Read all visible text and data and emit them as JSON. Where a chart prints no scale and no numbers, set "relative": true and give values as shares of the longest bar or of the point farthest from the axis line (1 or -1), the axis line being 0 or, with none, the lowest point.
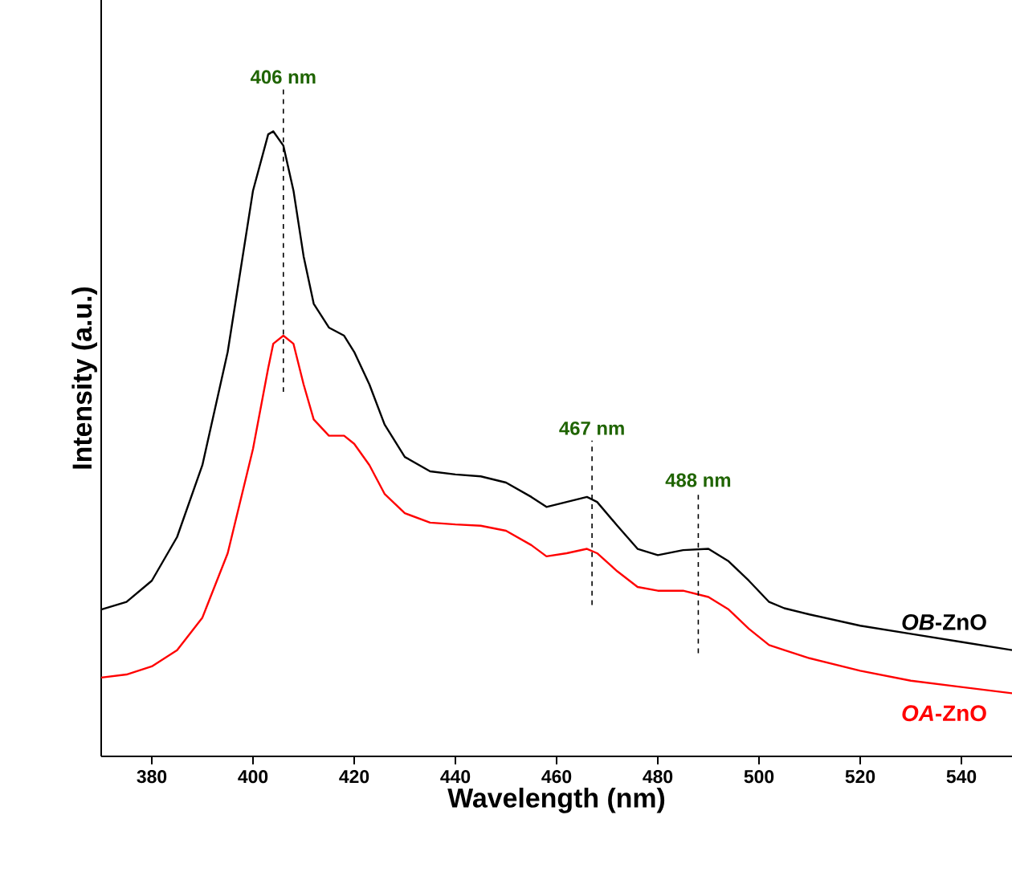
{
  "chart_data": {
    "type": "line",
    "relative": true,
    "xlabel": "Wavelength (nm)",
    "ylabel": "Intensity (a.u.)",
    "x": [
      370,
      375,
      380,
      385,
      390,
      395,
      400,
      403,
      404,
      406,
      408,
      410,
      412,
      415,
      418,
      420,
      423,
      426,
      430,
      435,
      440,
      445,
      450,
      455,
      458,
      462,
      466,
      468,
      472,
      476,
      480,
      485,
      490,
      494,
      498,
      502,
      505,
      510,
      520,
      530,
      540,
      550
    ],
    "xlim": [
      370,
      550
    ],
    "xticks": [
      380,
      400,
      420,
      440,
      460,
      480,
      500,
      520,
      540
    ],
    "legend": false,
    "series": [
      {
        "name": "*OB*-ZnO",
        "color": "#000000",
        "values": [
          0.235,
          0.247,
          0.281,
          0.351,
          0.466,
          0.647,
          0.905,
          0.995,
          1.0,
          0.977,
          0.905,
          0.8,
          0.724,
          0.686,
          0.673,
          0.647,
          0.595,
          0.531,
          0.479,
          0.456,
          0.451,
          0.448,
          0.438,
          0.415,
          0.399,
          0.407,
          0.415,
          0.407,
          0.369,
          0.332,
          0.322,
          0.33,
          0.332,
          0.312,
          0.281,
          0.247,
          0.237,
          0.227,
          0.209,
          0.196,
          0.183,
          0.17
        ]
      },
      {
        "name": "*OA*-ZnO",
        "color": "#ff0000",
        "values": [
          0.126,
          0.131,
          0.144,
          0.17,
          0.222,
          0.325,
          0.492,
          0.621,
          0.66,
          0.673,
          0.66,
          0.595,
          0.539,
          0.513,
          0.513,
          0.5,
          0.466,
          0.42,
          0.389,
          0.374,
          0.371,
          0.369,
          0.361,
          0.338,
          0.32,
          0.325,
          0.332,
          0.325,
          0.296,
          0.271,
          0.265,
          0.265,
          0.255,
          0.235,
          0.204,
          0.178,
          0.17,
          0.157,
          0.137,
          0.121,
          0.111,
          0.101
        ]
      }
    ],
    "ref_lines": [
      {
        "axis": "x",
        "value": 406,
        "label": "406 nm",
        "line_style": "dashed",
        "color": "#000000"
      },
      {
        "axis": "x",
        "value": 467,
        "label": "467 nm",
        "line_style": "dashed",
        "color": "#000000"
      },
      {
        "axis": "x",
        "value": 488,
        "label": "488 nm",
        "line_style": "dashed",
        "color": "#000000"
      }
    ]
  }
}
